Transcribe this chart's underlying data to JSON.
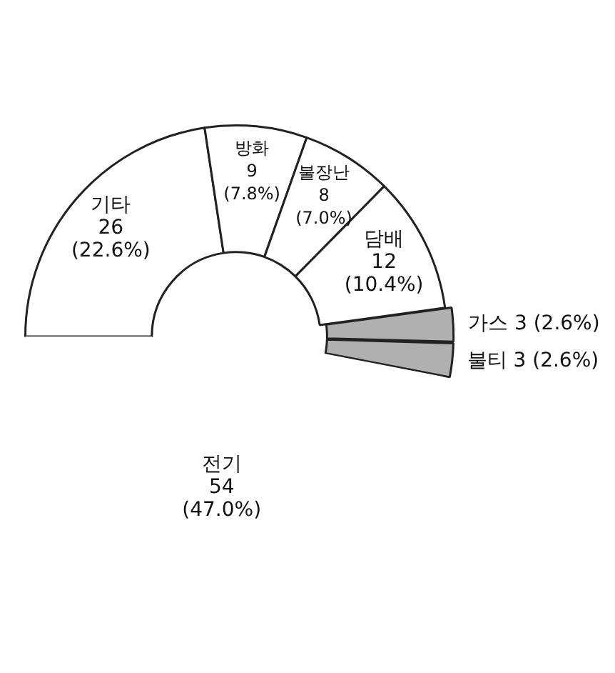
{
  "chart_data": {
    "type": "donut",
    "categories": [
      "기타",
      "방화",
      "불장난",
      "담배",
      "가스",
      "불티",
      "전기"
    ],
    "values": [
      26,
      9,
      8,
      12,
      3,
      3,
      54
    ],
    "value_labels": [
      "26 (22.6%)",
      "9 (7.8%)",
      "8 (7.0%)",
      "12 (10.4%)",
      "3 (2.6%)",
      "3 (2.6%)",
      "54 (47.0%)"
    ],
    "colors": [
      "#ffffff",
      "#ffffff",
      "#ffffff",
      "#ffffff",
      "#b0b0b0",
      "#b0b0b0",
      "#ffffff"
    ],
    "legend": false
  }
}
